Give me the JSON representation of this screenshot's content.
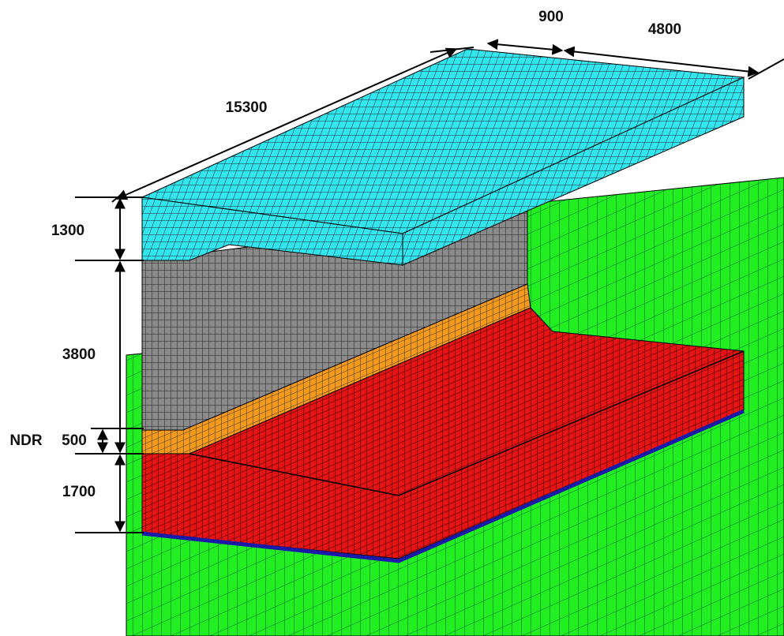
{
  "labels": [
    "900",
    "4800",
    "15300",
    "1300",
    "3800",
    "NDR",
    "500",
    "1700"
  ]
}
